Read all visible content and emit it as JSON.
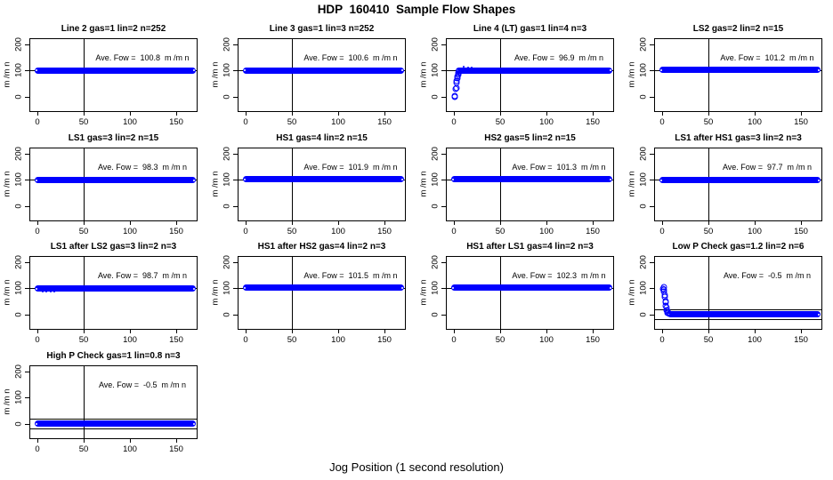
{
  "chart_data": {
    "type": "scatter",
    "title": "HDP  160410  Sample Flow Shapes",
    "xlabel": "Jog Position (1 second resolution)",
    "ylabel": "m /m n",
    "layout": "4 columns x 4 rows, 13 panels, grid off, no legend",
    "x_ticks": [
      0,
      50,
      100,
      150
    ],
    "y_ticks": [
      0,
      100,
      200
    ],
    "xlim": [
      -8,
      176
    ],
    "ylim": [
      -56,
      220
    ],
    "vline_x": 50,
    "point_color": "#0000ff",
    "line_color": "#000000",
    "panels": [
      {
        "title": "Line 2 gas=1 lin=2 n=252",
        "annotation": "Ave. Fow =  100.8  m /m n",
        "ave_flow": 100.8,
        "band": {
          "x0": 0,
          "x1": 168,
          "y": 100.8
        },
        "hlines": [
          100
        ],
        "points": [],
        "dots": []
      },
      {
        "title": "Line 3 gas=1 lin=3 n=252",
        "annotation": "Ave. Fow =  100.6  m /m n",
        "ave_flow": 100.6,
        "band": {
          "x0": 0,
          "x1": 168,
          "y": 100.6
        },
        "hlines": [
          100
        ],
        "points": [],
        "dots": []
      },
      {
        "title": "Line 4 (LT) gas=1 lin=4 n=3",
        "annotation": "Ave. Fow =  96.9  m /m n",
        "ave_flow": 96.9,
        "band": {
          "x0": 5,
          "x1": 168,
          "y": 100
        },
        "hlines": [
          100
        ],
        "points": [
          [
            1,
            -2
          ],
          [
            1.3,
            3
          ],
          [
            2,
            28
          ],
          [
            2.4,
            34
          ],
          [
            2.9,
            52
          ],
          [
            3.2,
            60
          ],
          [
            3.6,
            70
          ],
          [
            4,
            78
          ],
          [
            4.4,
            84
          ],
          [
            4.9,
            90
          ],
          [
            5.5,
            95
          ]
        ],
        "dots": [
          [
            11,
            113
          ],
          [
            15,
            111
          ],
          [
            19,
            112
          ]
        ]
      },
      {
        "title": "LS2 gas=2 lin=2 n=15",
        "annotation": "Ave. Fow =  101.2  m /m n",
        "ave_flow": 101.2,
        "band": {
          "x0": 0,
          "x1": 168,
          "y": 101.2
        },
        "hlines": [
          100
        ],
        "points": [],
        "dots": []
      },
      {
        "title": "LS1 gas=3 lin=2 n=15",
        "annotation": "Ave. Fow =  98.3  m /m n",
        "ave_flow": 98.3,
        "band": {
          "x0": 0,
          "x1": 168,
          "y": 98.3
        },
        "hlines": [
          100
        ],
        "points": [],
        "dots": []
      },
      {
        "title": "HS1 gas=4 lin=2 n=15",
        "annotation": "Ave. Fow =  101.9  m /m n",
        "ave_flow": 101.9,
        "band": {
          "x0": 0,
          "x1": 168,
          "y": 101.9
        },
        "hlines": [
          100
        ],
        "points": [],
        "dots": []
      },
      {
        "title": "HS2 gas=5 lin=2 n=15",
        "annotation": "Ave. Fow =  101.3  m /m n",
        "ave_flow": 101.3,
        "band": {
          "x0": 0,
          "x1": 168,
          "y": 101.3
        },
        "hlines": [
          100
        ],
        "points": [],
        "dots": []
      },
      {
        "title": "LS1 after HS1 gas=3 lin=2 n=3",
        "annotation": "Ave. Fow =  97.7  m /m n",
        "ave_flow": 97.7,
        "band": {
          "x0": 0,
          "x1": 168,
          "y": 97.7
        },
        "hlines": [
          100
        ],
        "points": [],
        "dots": []
      },
      {
        "title": "LS1 after LS2 gas=3 lin=2 n=3",
        "annotation": "Ave. Fow =  98.7  m /m n",
        "ave_flow": 98.7,
        "band": {
          "x0": 0,
          "x1": 168,
          "y": 98.7
        },
        "hlines": [
          100
        ],
        "points": [],
        "dots": [
          [
            6,
            88
          ],
          [
            10,
            87
          ],
          [
            14,
            87
          ],
          [
            18,
            88
          ]
        ]
      },
      {
        "title": "HS1 after HS2 gas=4 lin=2 n=3",
        "annotation": "Ave. Fow =  101.5  m /m n",
        "ave_flow": 101.5,
        "band": {
          "x0": 0,
          "x1": 168,
          "y": 101.5
        },
        "hlines": [
          100
        ],
        "points": [],
        "dots": []
      },
      {
        "title": "HS1 after LS1 gas=4 lin=2 n=3",
        "annotation": "Ave. Fow =  102.3  m /m n",
        "ave_flow": 102.3,
        "band": {
          "x0": 0,
          "x1": 168,
          "y": 102.3
        },
        "hlines": [
          100
        ],
        "points": [],
        "dots": []
      },
      {
        "title": "Low P Check gas=1.2 lin=2 n=6",
        "annotation": "Ave. Fow =  -0.5  m /m n",
        "ave_flow": -0.5,
        "band": {
          "x0": 9,
          "x1": 168,
          "y": -0.5
        },
        "hlines": [
          20,
          -20
        ],
        "points": [
          [
            1,
            97
          ],
          [
            1.4,
            103
          ],
          [
            1.8,
            95
          ],
          [
            2.2,
            87
          ],
          [
            2.6,
            74
          ],
          [
            3,
            68
          ],
          [
            3.4,
            50
          ],
          [
            3.8,
            45
          ],
          [
            4.2,
            32
          ],
          [
            4.6,
            25
          ],
          [
            5,
            17
          ],
          [
            5.6,
            11
          ],
          [
            6.2,
            7
          ],
          [
            7,
            4
          ],
          [
            8,
            1
          ]
        ],
        "dots": []
      },
      {
        "title": "High P Check gas=1 lin=0.8 n=3",
        "annotation": "Ave. Fow =  -0.5  m /m n",
        "ave_flow": -0.5,
        "band": {
          "x0": 0,
          "x1": 168,
          "y": -0.5
        },
        "hlines": [
          20,
          -20
        ],
        "points": [],
        "dots": []
      }
    ]
  }
}
